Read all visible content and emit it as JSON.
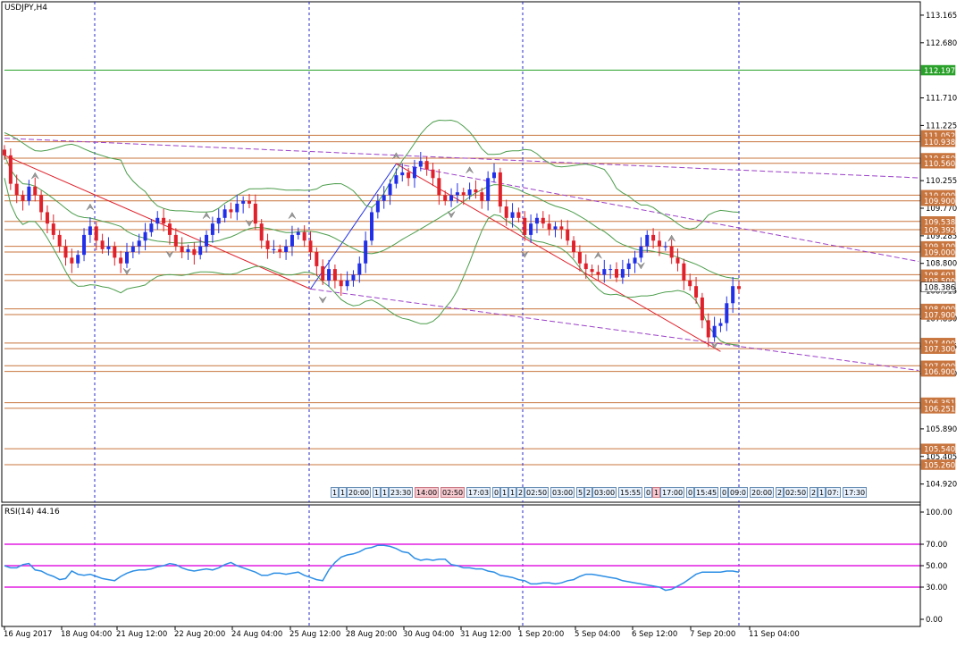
{
  "window": {
    "title": "USDJPY,H4"
  },
  "rsi": {
    "label": "RSI(14) 44.16",
    "value": 44.16,
    "levels": [
      70,
      50,
      30
    ]
  },
  "current_price": "108.386",
  "highlight_level": "112.197",
  "chart_data": [
    {
      "type": "candlestick",
      "symbol": "USDJPY",
      "timeframe": "H4",
      "y_axis_ticks": [
        "113.165",
        "112.680",
        "111.710",
        "111.225",
        "110.255",
        "109.770",
        "109.285",
        "108.800",
        "108.315",
        "107.830",
        "107.345",
        "106.860",
        "105.890",
        "105.405",
        "104.920"
      ],
      "ylim": [
        104.6,
        113.4
      ],
      "price_labels": [
        "112.197",
        "111.052",
        "110.938",
        "110.650",
        "110.560",
        "110.000",
        "109.900",
        "109.538",
        "109.392",
        "109.100",
        "109.000",
        "108.601",
        "108.500",
        "108.386",
        "108.000",
        "107.900",
        "107.400",
        "107.300",
        "107.000",
        "106.900",
        "106.351",
        "106.251",
        "105.540",
        "105.260"
      ],
      "horizontal_levels": [
        112.197,
        111.052,
        110.938,
        110.65,
        110.56,
        110.0,
        109.9,
        109.538,
        109.392,
        109.1,
        109.0,
        108.601,
        108.5,
        108.0,
        107.9,
        107.4,
        107.3,
        107.0,
        106.9,
        106.351,
        106.251,
        105.54,
        105.26
      ],
      "x_labels": [
        "16 Aug 2017",
        "18 Aug 04:00",
        "21 Aug 12:00",
        "22 Aug 20:00",
        "24 Aug 04:00",
        "25 Aug 12:00",
        "28 Aug 20:00",
        "30 Aug 04:00",
        "31 Aug 12:00",
        "1 Sep 20:00",
        "5 Sep 04:00",
        "6 Sep 12:00",
        "7 Sep 20:00",
        "11 Sep 04:00"
      ],
      "closes": [
        110.7,
        110.2,
        110.0,
        109.9,
        110.15,
        110.0,
        109.7,
        109.5,
        109.3,
        109.1,
        108.9,
        108.8,
        108.95,
        109.3,
        109.45,
        109.2,
        109.05,
        109.1,
        108.9,
        108.8,
        109.0,
        109.1,
        109.2,
        109.35,
        109.5,
        109.6,
        109.5,
        109.3,
        109.1,
        109.0,
        109.05,
        108.95,
        109.1,
        109.3,
        109.5,
        109.6,
        109.75,
        109.7,
        109.85,
        109.9,
        109.85,
        109.5,
        109.2,
        109.05,
        109.05,
        109.0,
        109.1,
        109.3,
        109.35,
        109.2,
        109.0,
        108.75,
        108.5,
        108.7,
        108.5,
        108.4,
        108.5,
        108.6,
        108.8,
        109.2,
        109.7,
        109.9,
        110.0,
        110.2,
        110.35,
        110.4,
        110.3,
        110.5,
        110.6,
        110.45,
        110.3,
        110.0,
        109.9,
        110.0,
        110.05,
        110.0,
        110.1,
        110.05,
        109.9,
        110.3,
        110.4,
        109.8,
        109.6,
        109.7,
        109.6,
        109.3,
        109.5,
        109.6,
        109.5,
        109.4,
        109.45,
        109.4,
        109.2,
        109.0,
        108.8,
        108.7,
        108.65,
        108.6,
        108.7,
        108.7,
        108.55,
        108.7,
        108.8,
        108.9,
        109.1,
        109.3,
        109.2,
        109.1,
        109.1,
        108.9,
        108.8,
        108.5,
        108.4,
        108.2,
        107.8,
        107.5,
        107.7,
        107.75,
        108.1,
        108.4,
        108.35
      ],
      "series": [
        {
          "name": "RSI(14)",
          "values": [
            50,
            48,
            48,
            51,
            52,
            46,
            45,
            42,
            40,
            37,
            38,
            45,
            42,
            41,
            42,
            40,
            38,
            37,
            36,
            40,
            43,
            45,
            46,
            46,
            47,
            49,
            50,
            52,
            51,
            48,
            46,
            45,
            46,
            47,
            46,
            48,
            51,
            53,
            50,
            48,
            46,
            44,
            41,
            41,
            43,
            43,
            42,
            43,
            44,
            41,
            39,
            37,
            36,
            46,
            53,
            58,
            60,
            61,
            63,
            66,
            67,
            69,
            69,
            68,
            66,
            63,
            62,
            57,
            55,
            56,
            55,
            56,
            56,
            51,
            50,
            48,
            48,
            47,
            47,
            45,
            44,
            41,
            40,
            39,
            37,
            36,
            33,
            33,
            34,
            34,
            33,
            34,
            36,
            37,
            40,
            42,
            42,
            41,
            40,
            39,
            38,
            36,
            35,
            34,
            33,
            32,
            31,
            30,
            27,
            28,
            31,
            34,
            38,
            42,
            44,
            44,
            44,
            44,
            45,
            45,
            44
          ]
        }
      ],
      "rsi_ylim": [
        0,
        100
      ],
      "rsi_ticks": [
        "100.00",
        "70.00",
        "50.00",
        "30.00",
        "0.00"
      ]
    }
  ],
  "event_bar": [
    {
      "text": "1",
      "red": false
    },
    {
      "text": "1",
      "red": false
    },
    {
      "text": "20:00",
      "red": false
    },
    {
      "text": "1",
      "red": false
    },
    {
      "text": "1",
      "red": false
    },
    {
      "text": "23:30",
      "red": false
    },
    {
      "text": "14:00",
      "red": true
    },
    {
      "text": "02:50",
      "red": true
    },
    {
      "text": "17:03",
      "red": false
    },
    {
      "text": "0",
      "red": false
    },
    {
      "text": "1",
      "red": false
    },
    {
      "text": "1",
      "red": false
    },
    {
      "text": "2",
      "red": false
    },
    {
      "text": "02:50",
      "red": false
    },
    {
      "text": "03:00",
      "red": false
    },
    {
      "text": "5",
      "red": false
    },
    {
      "text": "2",
      "red": false
    },
    {
      "text": "03:00",
      "red": false
    },
    {
      "text": "15:55",
      "red": false
    },
    {
      "text": "0",
      "red": false
    },
    {
      "text": "1",
      "red": true
    },
    {
      "text": "17:00",
      "red": false
    },
    {
      "text": "0",
      "red": false
    },
    {
      "text": "15:45",
      "red": false
    },
    {
      "text": "0",
      "red": false
    },
    {
      "text": "09:0",
      "red": false
    },
    {
      "text": "20:00",
      "red": false
    },
    {
      "text": "2",
      "red": false
    },
    {
      "text": "02:50",
      "red": false
    },
    {
      "text": "2",
      "red": false
    },
    {
      "text": "1",
      "red": false
    },
    {
      "text": "07:",
      "red": false
    },
    {
      "text": "17:30",
      "red": false
    }
  ],
  "colors": {
    "bull": "#2130e8",
    "bear": "#e0202a",
    "level": "#c8753e",
    "green_level": "#2aa12a",
    "bands": "#4c9d4c",
    "rsi": "#2d8fe6",
    "rsi_levels": "#e21be2",
    "trend": "#9b40c8",
    "grid": "#2828c8"
  }
}
